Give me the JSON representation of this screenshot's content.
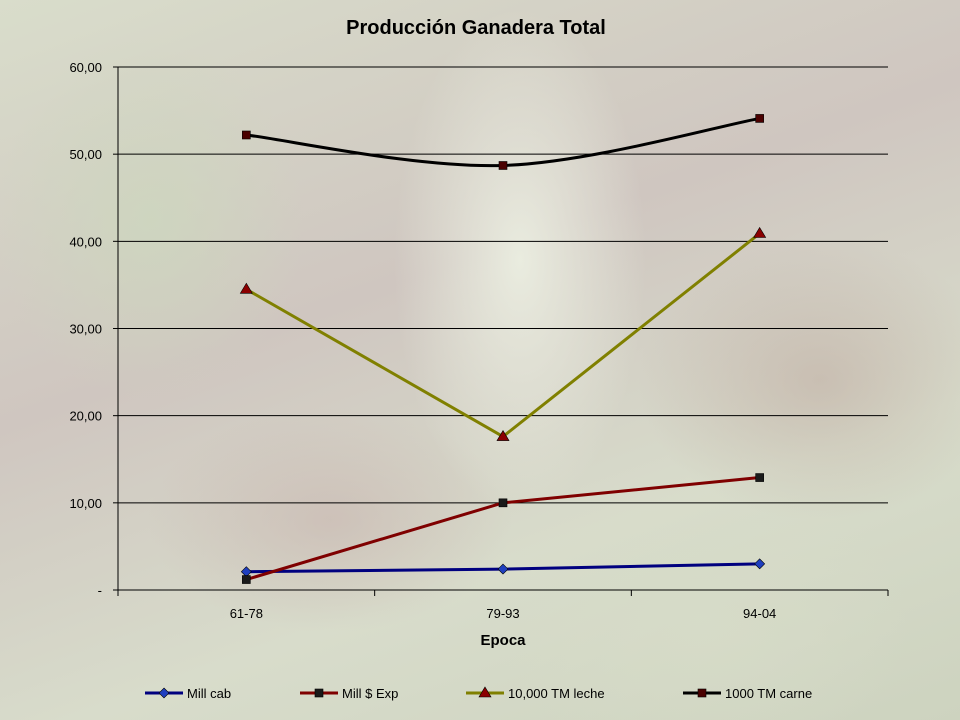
{
  "chart_data": {
    "type": "line",
    "title": "Producción Ganadera Total",
    "xlabel": "Epoca",
    "ylabel": "",
    "categories": [
      "61-78",
      "79-93",
      "94-04"
    ],
    "ylim": [
      0,
      60
    ],
    "y_ticks": [
      {
        "value": 0,
        "label": "-"
      },
      {
        "value": 10,
        "label": "10,00"
      },
      {
        "value": 20,
        "label": "20,00"
      },
      {
        "value": 30,
        "label": "30,00"
      },
      {
        "value": 40,
        "label": "40,00"
      },
      {
        "value": 50,
        "label": "50,00"
      },
      {
        "value": 60,
        "label": "60,00"
      }
    ],
    "grid": true,
    "legend_position": "bottom",
    "series": [
      {
        "name": "Mill cab",
        "values": [
          2.1,
          2.4,
          3.0
        ],
        "color": "#00007f",
        "marker": "diamond",
        "marker_color": "#1f3fbf",
        "smooth": false
      },
      {
        "name": "Mill $ Exp",
        "values": [
          1.2,
          10.0,
          12.9
        ],
        "color": "#7f0000",
        "marker": "square",
        "marker_color": "#1a1a1a",
        "smooth": false
      },
      {
        "name": "10,000 TM leche",
        "values": [
          34.5,
          17.6,
          40.9
        ],
        "color": "#808000",
        "marker": "triangle",
        "marker_color": "#8b0000",
        "smooth": false
      },
      {
        "name": "1000 TM carne",
        "values": [
          52.2,
          48.7,
          54.1
        ],
        "color": "#000000",
        "marker": "square",
        "marker_color": "#4a0000",
        "smooth": true
      }
    ]
  }
}
